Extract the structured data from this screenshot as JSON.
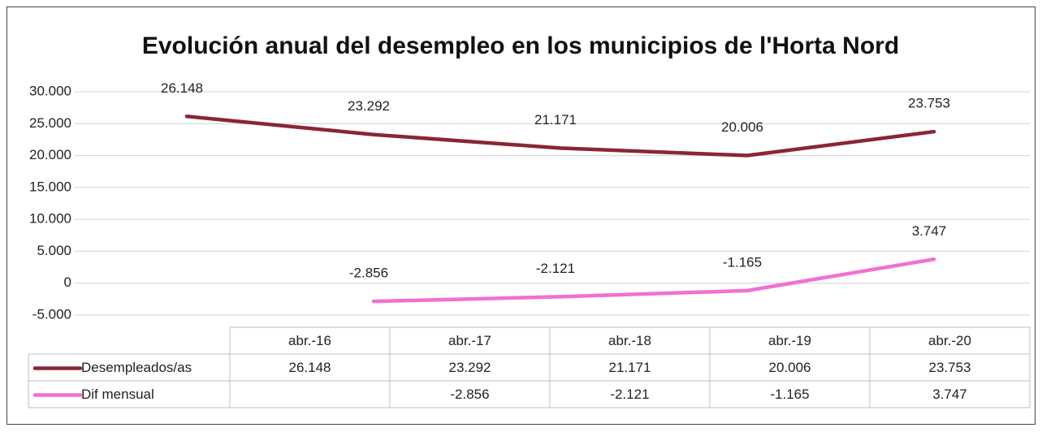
{
  "chart_data": {
    "type": "line",
    "title": "Evolución anual del desempleo en los municipios de l'Horta Nord",
    "categories": [
      "abr.-16",
      "abr.-17",
      "abr.-18",
      "abr.-19",
      "abr.-20"
    ],
    "series": [
      {
        "name": "Desempleados/as",
        "color": "#8b2535",
        "values": [
          26148,
          23292,
          21171,
          20006,
          23753
        ],
        "value_labels": [
          "26.148",
          "23.292",
          "21.171",
          "20.006",
          "23.753"
        ]
      },
      {
        "name": "Dif mensual",
        "color": "#f26fd3",
        "values": [
          null,
          -2856,
          -2121,
          -1165,
          3747
        ],
        "value_labels": [
          null,
          "-2.856",
          "-2.121",
          "-1.165",
          "3.747"
        ]
      }
    ],
    "ylim": [
      -5000,
      30000
    ],
    "yticks": [
      {
        "value": -5000,
        "label": "-5.000"
      },
      0,
      {
        "value": 5000,
        "label": "5.000"
      },
      {
        "value": 10000,
        "label": "10.000"
      },
      {
        "value": 15000,
        "label": "15.000"
      },
      {
        "value": 20000,
        "label": "20.000"
      },
      {
        "value": 25000,
        "label": "25.000"
      },
      {
        "value": 30000,
        "label": "30.000"
      }
    ],
    "grid": true,
    "data_table": true
  }
}
